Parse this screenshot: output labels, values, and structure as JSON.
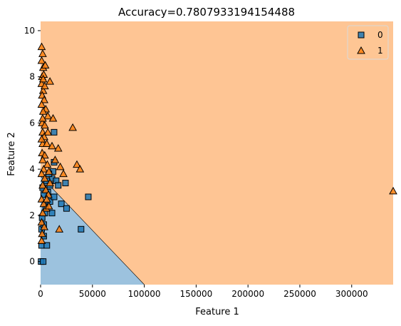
{
  "chart_data": {
    "type": "scatter",
    "title": "Accuracy=0.7807933194154488",
    "xlabel": "Feature 1",
    "ylabel": "Feature 2",
    "xlim": [
      0,
      340000
    ],
    "ylim": [
      -1,
      10.4
    ],
    "x_ticks": [
      0,
      50000,
      100000,
      150000,
      200000,
      250000,
      300000
    ],
    "x_tick_labels": [
      "0",
      "50000",
      "100000",
      "150000",
      "200000",
      "250000",
      "300000"
    ],
    "y_ticks": [
      0,
      2,
      4,
      6,
      8,
      10
    ],
    "y_tick_labels": [
      "0",
      "2",
      "4",
      "6",
      "8",
      "10"
    ],
    "grid": false,
    "legend_position": "top-right",
    "decision_regions": {
      "class_0_color": "#9cc2de",
      "class_1_color": "#fec594",
      "class_0_polygon": [
        [
          0,
          -1
        ],
        [
          100000,
          -1
        ],
        [
          0,
          3.7
        ]
      ]
    },
    "series": [
      {
        "name": "0",
        "marker": "square",
        "color": "#1f77b4",
        "points": [
          [
            500,
            0
          ],
          [
            2500,
            0
          ],
          [
            1000,
            0.7
          ],
          [
            6000,
            0.7
          ],
          [
            3000,
            1.1
          ],
          [
            1000,
            1.4
          ],
          [
            3000,
            1.6
          ],
          [
            1500,
            1.9
          ],
          [
            4000,
            2.1
          ],
          [
            5000,
            2.4
          ],
          [
            11000,
            2.1
          ],
          [
            9000,
            2.6
          ],
          [
            13000,
            2.8
          ],
          [
            7000,
            3.0
          ],
          [
            9000,
            3.3
          ],
          [
            11000,
            3.6
          ],
          [
            12000,
            3.9
          ],
          [
            8000,
            3.8
          ],
          [
            15000,
            3.5
          ],
          [
            17000,
            3.3
          ],
          [
            20000,
            2.5
          ],
          [
            25000,
            2.3
          ],
          [
            46000,
            2.8
          ],
          [
            39000,
            1.4
          ],
          [
            13000,
            4.3
          ],
          [
            13000,
            5.6
          ],
          [
            24000,
            3.4
          ],
          [
            3000,
            2.9
          ],
          [
            6000,
            3.5
          ],
          [
            2000,
            3.2
          ]
        ]
      },
      {
        "name": "1",
        "marker": "triangle",
        "color": "#ff7f0e",
        "points": [
          [
            1000,
            9.3
          ],
          [
            2000,
            9.0
          ],
          [
            1000,
            8.7
          ],
          [
            2500,
            8.4
          ],
          [
            1500,
            8.0
          ],
          [
            3000,
            8.1
          ],
          [
            1000,
            7.7
          ],
          [
            2500,
            7.4
          ],
          [
            4000,
            7.6
          ],
          [
            9000,
            7.8
          ],
          [
            1500,
            7.2
          ],
          [
            3500,
            7.0
          ],
          [
            1000,
            6.8
          ],
          [
            5000,
            6.6
          ],
          [
            2500,
            6.5
          ],
          [
            7000,
            6.3
          ],
          [
            12000,
            6.2
          ],
          [
            1500,
            6.0
          ],
          [
            4000,
            5.9
          ],
          [
            2000,
            5.6
          ],
          [
            7000,
            5.6
          ],
          [
            31000,
            5.8
          ],
          [
            3500,
            5.4
          ],
          [
            2000,
            5.1
          ],
          [
            6000,
            5.1
          ],
          [
            11000,
            5.0
          ],
          [
            17000,
            4.9
          ],
          [
            1500,
            4.7
          ],
          [
            4000,
            4.6
          ],
          [
            2000,
            4.4
          ],
          [
            6500,
            4.2
          ],
          [
            3000,
            4.0
          ],
          [
            8000,
            3.9
          ],
          [
            1000,
            3.8
          ],
          [
            19000,
            4.1
          ],
          [
            22000,
            3.8
          ],
          [
            35000,
            4.2
          ],
          [
            38000,
            4.0
          ],
          [
            4000,
            3.6
          ],
          [
            2000,
            3.3
          ],
          [
            5000,
            3.1
          ],
          [
            7500,
            2.9
          ],
          [
            1000,
            2.7
          ],
          [
            3000,
            2.5
          ],
          [
            5500,
            2.3
          ],
          [
            8000,
            2.4
          ],
          [
            2000,
            2.1
          ],
          [
            1000,
            1.7
          ],
          [
            3500,
            1.5
          ],
          [
            1500,
            1.2
          ],
          [
            18000,
            1.4
          ],
          [
            1000,
            0.9
          ],
          [
            340000,
            3.05
          ],
          [
            2500,
            7.9
          ],
          [
            1000,
            5.3
          ],
          [
            14000,
            4.4
          ],
          [
            2000,
            6.2
          ],
          [
            9000,
            3.4
          ],
          [
            4500,
            8.5
          ],
          [
            6000,
            2.7
          ]
        ]
      }
    ]
  }
}
